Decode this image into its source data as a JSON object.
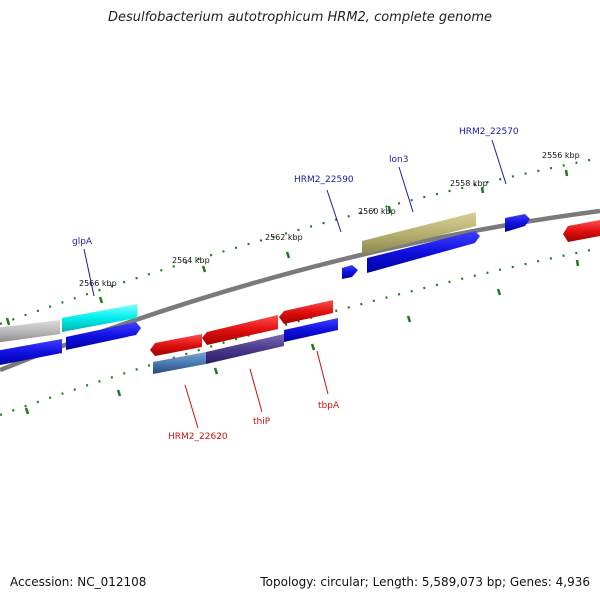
{
  "title": "Desulfobacterium autotrophicum HRM2, complete genome",
  "footer": {
    "accession": "Accession: NC_012108",
    "topology": "Topology: circular; Length: 5,589,073 bp; Genes: 4,936"
  },
  "scale_labels": [
    "2556 kbp",
    "2558 kbp",
    "2560 kbp",
    "2562 kbp",
    "2564 kbp",
    "2566 kbp"
  ],
  "gene_labels_top": [
    "HRM2_22570",
    "lon3",
    "HRM2_22590",
    "glpA"
  ],
  "gene_labels_bottom": [
    "HRM2_22620",
    "thiP",
    "tbpA"
  ],
  "colors": {
    "backbone": "#7a7a7a",
    "tick": "#1f7a1f",
    "cds_forward": "#1010e0",
    "cds_reverse": "#e01010",
    "cyan": "#00e5ee",
    "olive": "#b8b070",
    "grey": "#b8b8b8",
    "steelblue": "#4a7ab0",
    "purple": "#4a3a8a"
  }
}
